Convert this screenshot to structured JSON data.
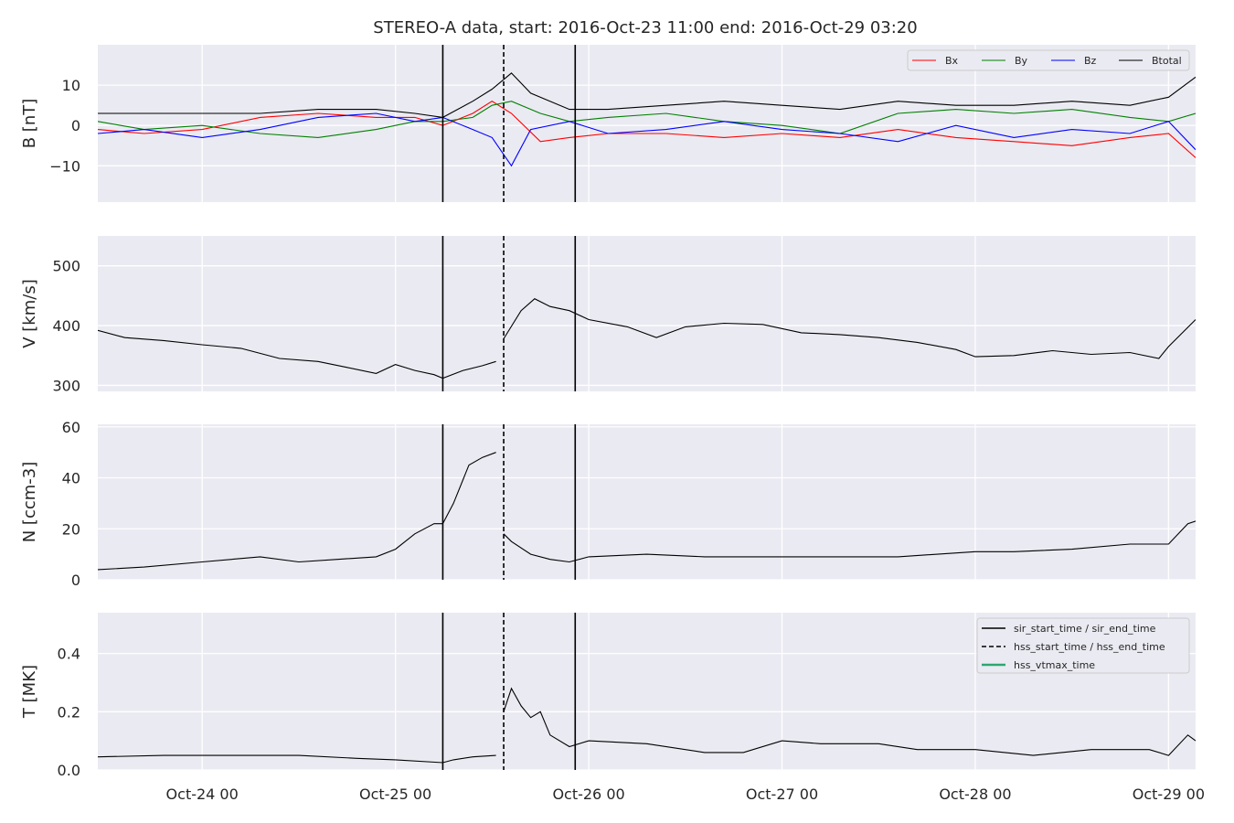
{
  "chart_data": {
    "type": "line",
    "title": "STEREO-A data, start: 2016-Oct-23 11:00  end: 2016-Oct-29 03:20",
    "x_range_days": [
      -0.54,
      5.14
    ],
    "x_ticks": [
      {
        "day": 0,
        "label": "Oct-24 00"
      },
      {
        "day": 1,
        "label": "Oct-25 00"
      },
      {
        "day": 2,
        "label": "Oct-26 00"
      },
      {
        "day": 3,
        "label": "Oct-27 00"
      },
      {
        "day": 4,
        "label": "Oct-28 00"
      },
      {
        "day": 5,
        "label": "Oct-29 00"
      }
    ],
    "event_lines": {
      "sir_start_time": 1.245,
      "hss_start_time": 1.56,
      "sir_end_time": 1.93
    },
    "legend_events": [
      {
        "label": "sir_start_time / sir_end_time",
        "style": "solid",
        "color": "#000000"
      },
      {
        "label": "hss_start_time / hss_end_time",
        "style": "dashed",
        "color": "#000000"
      },
      {
        "label": "hss_vtmax_time",
        "style": "solid",
        "color": "#2ca870"
      }
    ],
    "panels": [
      {
        "ylabel": "B [nT]",
        "ylim": [
          -19,
          20
        ],
        "yticks": [
          {
            "v": -10,
            "label": "−10"
          },
          {
            "v": 0,
            "label": "0"
          },
          {
            "v": 10,
            "label": "10"
          }
        ],
        "series": [
          {
            "name": "Bx",
            "color": "#ff0000",
            "points": [
              [
                -0.54,
                -1
              ],
              [
                -0.3,
                -2
              ],
              [
                0,
                -1
              ],
              [
                0.3,
                2
              ],
              [
                0.6,
                3
              ],
              [
                0.9,
                2
              ],
              [
                1.1,
                2
              ],
              [
                1.245,
                0
              ],
              [
                1.4,
                3
              ],
              [
                1.5,
                6
              ],
              [
                1.6,
                3
              ],
              [
                1.75,
                -4
              ],
              [
                1.9,
                -3
              ],
              [
                2.1,
                -2
              ],
              [
                2.4,
                -2
              ],
              [
                2.7,
                -3
              ],
              [
                3.0,
                -2
              ],
              [
                3.3,
                -3
              ],
              [
                3.6,
                -1
              ],
              [
                3.9,
                -3
              ],
              [
                4.2,
                -4
              ],
              [
                4.5,
                -5
              ],
              [
                4.8,
                -3
              ],
              [
                5.0,
                -2
              ],
              [
                5.14,
                -8
              ]
            ]
          },
          {
            "name": "By",
            "color": "#008000",
            "points": [
              [
                -0.54,
                1
              ],
              [
                -0.3,
                -1
              ],
              [
                0,
                0
              ],
              [
                0.3,
                -2
              ],
              [
                0.6,
                -3
              ],
              [
                0.9,
                -1
              ],
              [
                1.1,
                1
              ],
              [
                1.245,
                1
              ],
              [
                1.4,
                2
              ],
              [
                1.5,
                5
              ],
              [
                1.6,
                6
              ],
              [
                1.75,
                3
              ],
              [
                1.9,
                1
              ],
              [
                2.1,
                2
              ],
              [
                2.4,
                3
              ],
              [
                2.7,
                1
              ],
              [
                3.0,
                0
              ],
              [
                3.3,
                -2
              ],
              [
                3.6,
                3
              ],
              [
                3.9,
                4
              ],
              [
                4.2,
                3
              ],
              [
                4.5,
                4
              ],
              [
                4.8,
                2
              ],
              [
                5.0,
                1
              ],
              [
                5.14,
                3
              ]
            ]
          },
          {
            "name": "Bz",
            "color": "#0000ff",
            "points": [
              [
                -0.54,
                -2
              ],
              [
                -0.3,
                -1
              ],
              [
                0,
                -3
              ],
              [
                0.3,
                -1
              ],
              [
                0.6,
                2
              ],
              [
                0.9,
                3
              ],
              [
                1.1,
                1
              ],
              [
                1.245,
                2
              ],
              [
                1.4,
                -1
              ],
              [
                1.5,
                -3
              ],
              [
                1.6,
                -10
              ],
              [
                1.7,
                -1
              ],
              [
                1.9,
                1
              ],
              [
                2.1,
                -2
              ],
              [
                2.4,
                -1
              ],
              [
                2.7,
                1
              ],
              [
                3.0,
                -1
              ],
              [
                3.3,
                -2
              ],
              [
                3.6,
                -4
              ],
              [
                3.9,
                0
              ],
              [
                4.2,
                -3
              ],
              [
                4.5,
                -1
              ],
              [
                4.8,
                -2
              ],
              [
                5.0,
                1
              ],
              [
                5.14,
                -6
              ]
            ]
          },
          {
            "name": "Btotal",
            "color": "#000000",
            "points": [
              [
                -0.54,
                3
              ],
              [
                -0.3,
                3
              ],
              [
                0,
                3
              ],
              [
                0.3,
                3
              ],
              [
                0.6,
                4
              ],
              [
                0.9,
                4
              ],
              [
                1.1,
                3
              ],
              [
                1.245,
                2
              ],
              [
                1.4,
                6
              ],
              [
                1.5,
                9
              ],
              [
                1.6,
                13
              ],
              [
                1.7,
                8
              ],
              [
                1.9,
                4
              ],
              [
                2.1,
                4
              ],
              [
                2.4,
                5
              ],
              [
                2.7,
                6
              ],
              [
                3.0,
                5
              ],
              [
                3.3,
                4
              ],
              [
                3.6,
                6
              ],
              [
                3.9,
                5
              ],
              [
                4.2,
                5
              ],
              [
                4.5,
                6
              ],
              [
                4.8,
                5
              ],
              [
                5.0,
                7
              ],
              [
                5.14,
                12
              ]
            ]
          }
        ],
        "legend": true
      },
      {
        "ylabel": "V [km/s]",
        "ylim": [
          290,
          550
        ],
        "yticks": [
          {
            "v": 300,
            "label": "300"
          },
          {
            "v": 400,
            "label": "400"
          },
          {
            "v": 500,
            "label": "500"
          }
        ],
        "series": [
          {
            "name": "",
            "color": "#000000",
            "segments": [
              [
                [
                  -0.54,
                  392
                ],
                [
                  -0.4,
                  380
                ],
                [
                  -0.2,
                  375
                ],
                [
                  0,
                  368
                ],
                [
                  0.2,
                  362
                ],
                [
                  0.4,
                  345
                ],
                [
                  0.6,
                  340
                ],
                [
                  0.75,
                  330
                ],
                [
                  0.9,
                  320
                ],
                [
                  1.0,
                  335
                ],
                [
                  1.1,
                  325
                ],
                [
                  1.2,
                  318
                ],
                [
                  1.245,
                  312
                ],
                [
                  1.35,
                  325
                ],
                [
                  1.45,
                  333
                ],
                [
                  1.52,
                  340
                ]
              ],
              [
                [
                  1.56,
                  378
                ],
                [
                  1.65,
                  425
                ],
                [
                  1.72,
                  445
                ],
                [
                  1.8,
                  432
                ],
                [
                  1.9,
                  425
                ],
                [
                  2.0,
                  410
                ],
                [
                  2.2,
                  398
                ],
                [
                  2.35,
                  380
                ],
                [
                  2.5,
                  398
                ],
                [
                  2.7,
                  404
                ],
                [
                  2.9,
                  402
                ],
                [
                  3.1,
                  388
                ],
                [
                  3.3,
                  385
                ],
                [
                  3.5,
                  380
                ],
                [
                  3.7,
                  372
                ],
                [
                  3.9,
                  360
                ],
                [
                  4.0,
                  348
                ],
                [
                  4.2,
                  350
                ],
                [
                  4.4,
                  358
                ],
                [
                  4.6,
                  352
                ],
                [
                  4.8,
                  355
                ],
                [
                  4.95,
                  345
                ],
                [
                  5.0,
                  365
                ],
                [
                  5.14,
                  410
                ]
              ]
            ]
          }
        ],
        "legend": false
      },
      {
        "ylabel": "N [ccm-3]",
        "ylim": [
          0,
          61
        ],
        "yticks": [
          {
            "v": 0,
            "label": "0"
          },
          {
            "v": 20,
            "label": "20"
          },
          {
            "v": 40,
            "label": "40"
          },
          {
            "v": 60,
            "label": "60"
          }
        ],
        "series": [
          {
            "name": "",
            "color": "#000000",
            "segments": [
              [
                [
                  -0.54,
                  4
                ],
                [
                  -0.3,
                  5
                ],
                [
                  0,
                  7
                ],
                [
                  0.3,
                  9
                ],
                [
                  0.5,
                  7
                ],
                [
                  0.7,
                  8
                ],
                [
                  0.9,
                  9
                ],
                [
                  1.0,
                  12
                ],
                [
                  1.1,
                  18
                ],
                [
                  1.2,
                  22
                ],
                [
                  1.245,
                  22
                ],
                [
                  1.3,
                  30
                ],
                [
                  1.38,
                  45
                ],
                [
                  1.45,
                  48
                ],
                [
                  1.52,
                  50
                ]
              ],
              [
                [
                  1.56,
                  18
                ],
                [
                  1.6,
                  15
                ],
                [
                  1.7,
                  10
                ],
                [
                  1.8,
                  8
                ],
                [
                  1.9,
                  7
                ],
                [
                  2.0,
                  9
                ],
                [
                  2.3,
                  10
                ],
                [
                  2.6,
                  9
                ],
                [
                  3.0,
                  9
                ],
                [
                  3.3,
                  9
                ],
                [
                  3.6,
                  9
                ],
                [
                  4.0,
                  11
                ],
                [
                  4.2,
                  11
                ],
                [
                  4.5,
                  12
                ],
                [
                  4.8,
                  14
                ],
                [
                  5.0,
                  14
                ],
                [
                  5.1,
                  22
                ],
                [
                  5.14,
                  23
                ]
              ]
            ]
          }
        ],
        "legend": false
      },
      {
        "ylabel": "T [MK]",
        "ylim": [
          0,
          0.54
        ],
        "yticks": [
          {
            "v": 0,
            "label": "0.0"
          },
          {
            "v": 0.2,
            "label": "0.2"
          },
          {
            "v": 0.4,
            "label": "0.4"
          }
        ],
        "series": [
          {
            "name": "",
            "color": "#000000",
            "segments": [
              [
                [
                  -0.54,
                  0.045
                ],
                [
                  -0.2,
                  0.05
                ],
                [
                  0.2,
                  0.05
                ],
                [
                  0.5,
                  0.05
                ],
                [
                  0.8,
                  0.04
                ],
                [
                  1.0,
                  0.035
                ],
                [
                  1.245,
                  0.025
                ],
                [
                  1.3,
                  0.035
                ],
                [
                  1.4,
                  0.045
                ],
                [
                  1.52,
                  0.05
                ]
              ],
              [
                [
                  1.56,
                  0.2
                ],
                [
                  1.6,
                  0.28
                ],
                [
                  1.65,
                  0.22
                ],
                [
                  1.7,
                  0.18
                ],
                [
                  1.75,
                  0.2
                ],
                [
                  1.8,
                  0.12
                ],
                [
                  1.9,
                  0.08
                ],
                [
                  2.0,
                  0.1
                ],
                [
                  2.3,
                  0.09
                ],
                [
                  2.6,
                  0.06
                ],
                [
                  2.8,
                  0.06
                ],
                [
                  3.0,
                  0.1
                ],
                [
                  3.2,
                  0.09
                ],
                [
                  3.5,
                  0.09
                ],
                [
                  3.7,
                  0.07
                ],
                [
                  4.0,
                  0.07
                ],
                [
                  4.3,
                  0.05
                ],
                [
                  4.6,
                  0.07
                ],
                [
                  4.9,
                  0.07
                ],
                [
                  5.0,
                  0.05
                ],
                [
                  5.1,
                  0.12
                ],
                [
                  5.14,
                  0.1
                ]
              ]
            ]
          }
        ],
        "legend": false
      }
    ]
  }
}
